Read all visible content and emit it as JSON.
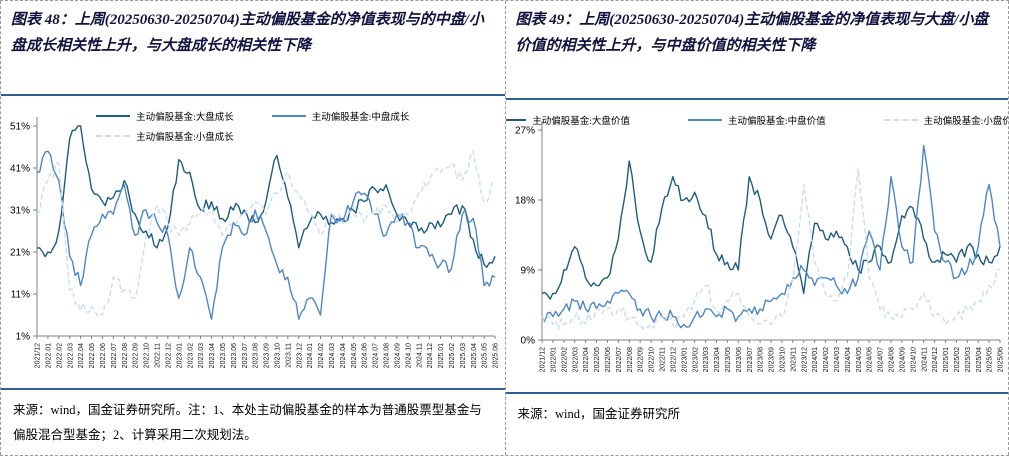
{
  "figures": [
    {
      "title": "图表 48：上周(20250630-20250704)主动偏股基金的净值表现与的中盘/小盘成长相关性上升，与大盘成长的相关性下降",
      "source": "来源：wind，国金证券研究所。注：1、本处主动偏股基金的样本为普通股票型基金与偏股混合型基金；2、计算采用二次规划法。"
    },
    {
      "title": "图表 49：上周(20250630-20250704)主动偏股基金的净值表现与大盘/小盘价值的相关性上升，与中盘价值的相关性下降",
      "source": "来源：wind，国金证券研究所"
    }
  ],
  "colors": {
    "title_text": "#121240",
    "accent_rule": "#2E5F94",
    "series_dark": "#1E5D7E",
    "series_medium": "#4E87C5",
    "series_light": "#C9DCF0",
    "axis": "#808080",
    "dashed_border": "#9A9A9A"
  },
  "chart_data": [
    {
      "type": "line",
      "title": "",
      "xlabel": "",
      "ylabel": "",
      "grid": false,
      "legend_position": "top",
      "legend_rows": [
        [
          0,
          1
        ],
        [
          2
        ]
      ],
      "ylim": [
        1,
        51
      ],
      "yticks": [
        1,
        11,
        21,
        31,
        41,
        51
      ],
      "ytick_suffix": "%",
      "categories": [
        "2021/12",
        "2022.01",
        "2022.02",
        "2022.03",
        "2022.04",
        "2022.05",
        "2022.06",
        "2022.07",
        "2022.08",
        "2022.09",
        "2022.10",
        "2022.11",
        "2022.12",
        "2023.01",
        "2023.02",
        "2023.03",
        "2023.04",
        "2023.05",
        "2023.06",
        "2023.07",
        "2023.08",
        "2023.09",
        "2023.10",
        "2023.11",
        "2023.12",
        "2024.01",
        "2024.02",
        "2024.03",
        "2024.04",
        "2024.05",
        "2024.06",
        "2024.07",
        "2024.08",
        "2024.09",
        "2024.10",
        "2024.11",
        "2024.12",
        "2025.01",
        "2025.02",
        "2025.03",
        "2025.04",
        "2025.05",
        "2025.06"
      ],
      "series": [
        {
          "name": "主动偏股基金:大盘成长",
          "color": "#1E5D7E",
          "style": "solid",
          "values": [
            22,
            21,
            26,
            48,
            51,
            36,
            33,
            34,
            38,
            30,
            26,
            22,
            27,
            43,
            40,
            31,
            33,
            29,
            31,
            31,
            28,
            33,
            44,
            34,
            22,
            28,
            30,
            28,
            29,
            31,
            33,
            36,
            37,
            30,
            28,
            26,
            28,
            27,
            30,
            32,
            24,
            18,
            20
          ]
        },
        {
          "name": "主动偏股基金:中盘成长",
          "color": "#4E87C5",
          "style": "solid",
          "values": [
            40,
            45,
            38,
            20,
            13,
            25,
            30,
            30,
            37,
            25,
            31,
            28,
            25,
            10,
            22,
            15,
            5,
            22,
            28,
            25,
            31,
            26,
            18,
            15,
            5,
            10,
            6,
            30,
            28,
            33,
            35,
            30,
            25,
            30,
            28,
            22,
            20,
            18,
            17,
            30,
            29,
            13,
            15
          ]
        },
        {
          "name": "主动偏股基金:小盘成长",
          "color": "#C9DCF0",
          "style": "dashed",
          "values": [
            30,
            38,
            42,
            12,
            7,
            8,
            6,
            15,
            12,
            10,
            25,
            32,
            28,
            25,
            28,
            30,
            32,
            25,
            28,
            30,
            33,
            30,
            35,
            40,
            35,
            30,
            25,
            30,
            28,
            30,
            28,
            30,
            32,
            28,
            30,
            35,
            38,
            40,
            42,
            38,
            45,
            33,
            38
          ]
        }
      ]
    },
    {
      "type": "line",
      "title": "",
      "xlabel": "",
      "ylabel": "",
      "grid": false,
      "legend_position": "top",
      "legend_rows": [
        [
          0,
          1,
          2
        ]
      ],
      "ylim": [
        0,
        27
      ],
      "yticks": [
        0,
        9,
        18,
        27
      ],
      "ytick_suffix": "%",
      "categories": [
        "2021/12",
        "2022/01",
        "2022/02",
        "2022/03",
        "2022/04",
        "2022/05",
        "2022/06",
        "2022/07",
        "2022/08",
        "2022/09",
        "2022/10",
        "2022/11",
        "2022/12",
        "2023/01",
        "2023/02",
        "2023/03",
        "2023/04",
        "2023/05",
        "2023/06",
        "2023/07",
        "2023/08",
        "2023/09",
        "2023/10",
        "2023/11",
        "2023/12",
        "2024/01",
        "2024/02",
        "2024/03",
        "2024/04",
        "2024/05",
        "2024/06",
        "2024/07",
        "2024/08",
        "2024/09",
        "2024/10",
        "2024/11",
        "2024/12",
        "2025/01",
        "2025/02",
        "2025/03",
        "2025/04",
        "2025/05",
        "2025/06"
      ],
      "series": [
        {
          "name": "主动偏股基金:大盘价值",
          "color": "#1E5D7E",
          "style": "solid",
          "values": [
            6,
            6,
            9,
            12,
            8,
            7,
            8,
            13,
            23,
            14,
            10,
            17,
            21,
            18,
            19,
            16,
            11,
            10,
            9,
            21,
            18,
            13,
            16,
            12,
            6,
            15,
            13,
            14,
            12,
            9,
            10,
            12,
            10,
            16,
            17,
            13,
            10,
            11,
            10,
            12,
            11,
            10,
            12
          ]
        },
        {
          "name": "主动偏股基金:中盘价值",
          "color": "#4E87C5",
          "style": "solid",
          "values": [
            3,
            3,
            4,
            5,
            4,
            4,
            5,
            6,
            6,
            4,
            3,
            3,
            3,
            2,
            3,
            4,
            3,
            4,
            3,
            4,
            4,
            5,
            6,
            8,
            9,
            7,
            8,
            7,
            6,
            8,
            14,
            9,
            21,
            12,
            10,
            25,
            14,
            10,
            8,
            9,
            12,
            20,
            12
          ]
        },
        {
          "name": "主动偏股基金:小盘价值",
          "color": "#C9DCF0",
          "style": "dashed",
          "values": [
            3,
            2,
            2,
            3,
            2,
            4,
            4,
            4,
            3,
            2,
            2,
            3,
            2,
            3,
            5,
            7,
            4,
            5,
            6,
            3,
            2,
            2,
            3,
            8,
            20,
            10,
            6,
            5,
            8,
            22,
            8,
            4,
            3,
            3,
            4,
            6,
            3,
            2,
            3,
            4,
            5,
            7,
            9
          ]
        }
      ]
    }
  ]
}
